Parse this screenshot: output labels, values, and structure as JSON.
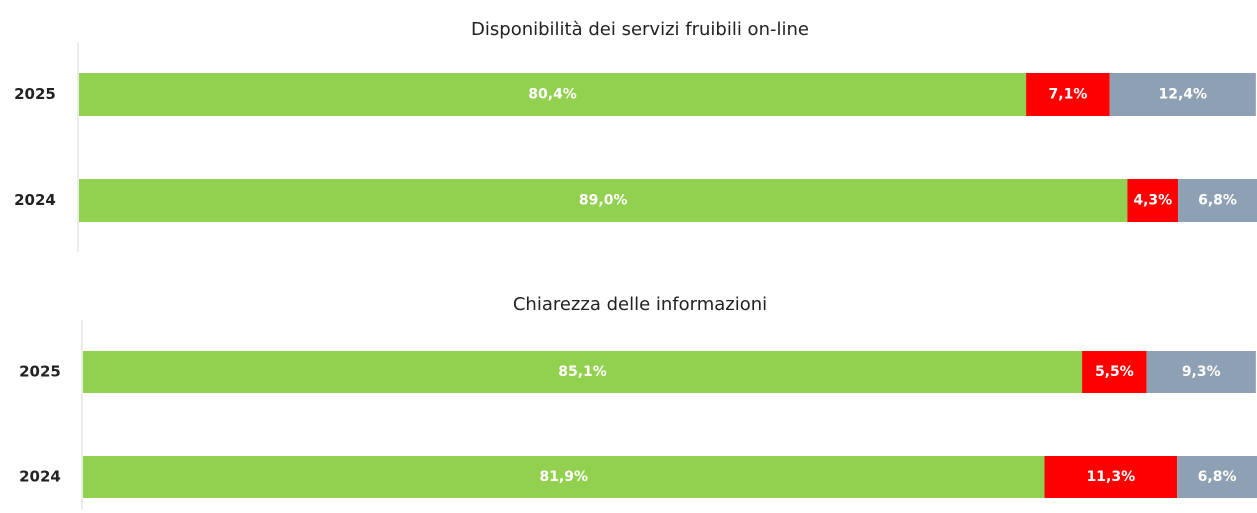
{
  "chart_data": [
    {
      "type": "stacked-bar-horizontal",
      "title": "Disponibilità dei servizi fruibili on-line",
      "categories": [
        "2025",
        "2024"
      ],
      "xlim": [
        0,
        100
      ],
      "series": [
        {
          "color": "#92d050",
          "values": [
            80.4,
            89.0
          ],
          "value_labels": [
            "80,4%",
            "89,0%"
          ]
        },
        {
          "color": "#ff0000",
          "values": [
            7.1,
            4.3
          ],
          "value_labels": [
            "7,1%",
            "4,3%"
          ]
        },
        {
          "color": "#8ea0b3",
          "values": [
            12.4,
            6.8
          ],
          "value_labels": [
            "12,4%",
            "6,8%"
          ]
        }
      ]
    },
    {
      "type": "stacked-bar-horizontal",
      "title": "Chiarezza delle informazioni",
      "categories": [
        "2025",
        "2024"
      ],
      "xlim": [
        0,
        100
      ],
      "series": [
        {
          "color": "#92d050",
          "values": [
            85.1,
            81.9
          ],
          "value_labels": [
            "85,1%",
            "81,9%"
          ]
        },
        {
          "color": "#ff0000",
          "values": [
            5.5,
            11.3
          ],
          "value_labels": [
            "5,5%",
            "11,3%"
          ]
        },
        {
          "color": "#8ea0b3",
          "values": [
            9.3,
            6.8
          ],
          "value_labels": [
            "9,3%",
            "6,8%"
          ]
        }
      ]
    }
  ]
}
